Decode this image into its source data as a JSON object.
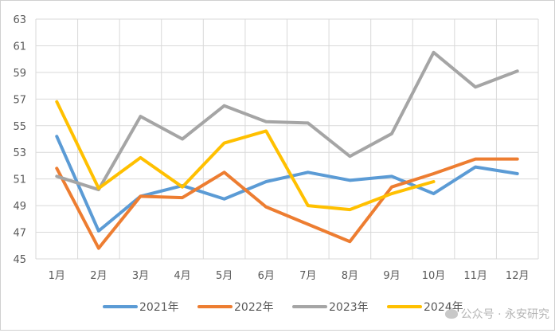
{
  "chart_data": {
    "type": "line",
    "categories": [
      "1月",
      "2月",
      "3月",
      "4月",
      "5月",
      "6月",
      "7月",
      "8月",
      "9月",
      "10月",
      "11月",
      "12月"
    ],
    "ylim": [
      45,
      63
    ],
    "yticks": [
      45,
      47,
      49,
      51,
      53,
      55,
      57,
      59,
      61,
      63
    ],
    "grid": true,
    "legend_position": "bottom",
    "series": [
      {
        "name": "2021年",
        "color": "#5b9bd5",
        "values": [
          54.2,
          47.1,
          49.7,
          50.5,
          49.5,
          50.8,
          51.5,
          50.9,
          51.2,
          49.9,
          51.9,
          51.4
        ]
      },
      {
        "name": "2022年",
        "color": "#ed7d31",
        "values": [
          51.8,
          45.8,
          49.7,
          49.6,
          51.5,
          48.9,
          47.6,
          46.3,
          50.4,
          51.4,
          52.5,
          52.5
        ]
      },
      {
        "name": "2023年",
        "color": "#a5a5a5",
        "values": [
          51.2,
          50.2,
          55.7,
          54.0,
          56.5,
          55.3,
          55.2,
          52.7,
          54.4,
          60.5,
          57.9,
          59.1
        ]
      },
      {
        "name": "2024年",
        "color": "#ffc000",
        "values": [
          56.8,
          50.3,
          52.6,
          50.4,
          53.7,
          54.6,
          49.0,
          48.7,
          49.9,
          50.8,
          null,
          null
        ]
      }
    ]
  },
  "watermark": {
    "icon": "wechat-icon",
    "text": "公众号 · 永安研究"
  }
}
